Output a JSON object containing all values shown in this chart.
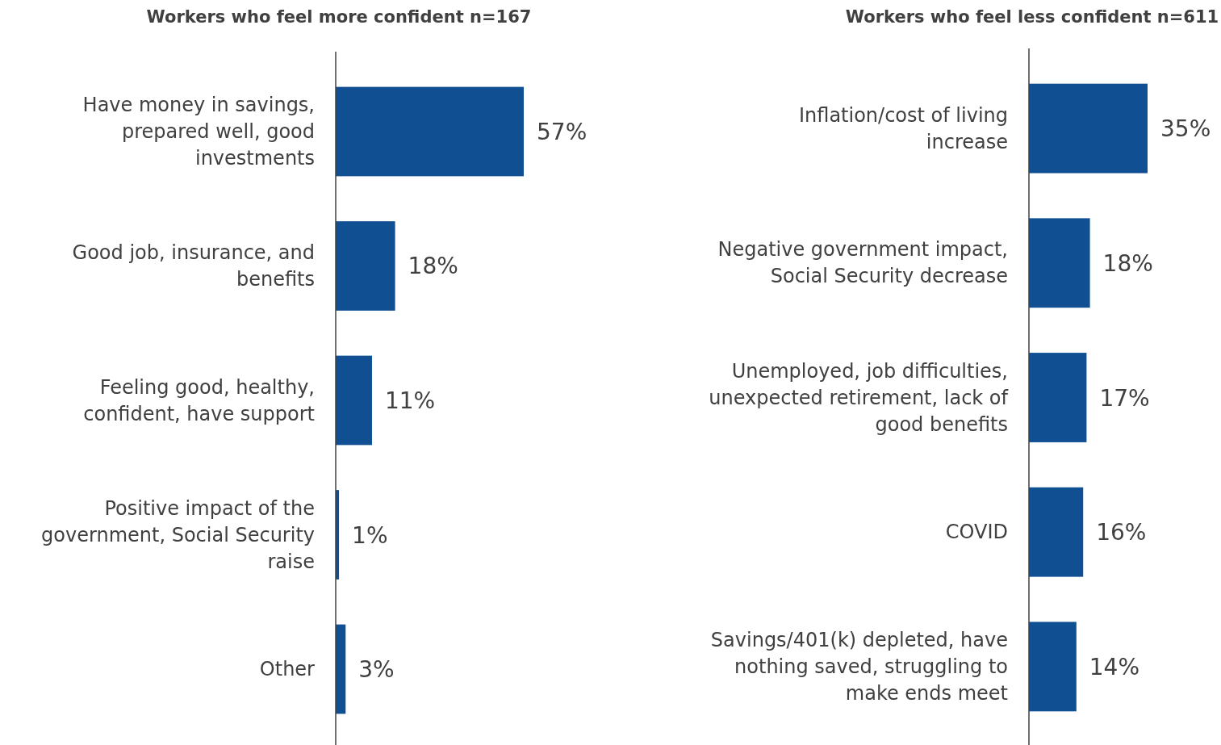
{
  "chart_data": [
    {
      "type": "bar",
      "orientation": "horizontal",
      "title": "Workers who feel more confident n=167",
      "categories": [
        "Have money in savings, prepared well, good investments",
        "Good job, insurance, and benefits",
        "Feeling good, healthy, confident, have support",
        "Positive impact of the government, Social Security raise",
        "Other"
      ],
      "values": [
        57,
        18,
        11,
        1,
        3
      ],
      "value_labels": [
        "57%",
        "18%",
        "11%",
        "1%",
        "3%"
      ],
      "color": "#114f93"
    },
    {
      "type": "bar",
      "orientation": "horizontal",
      "title": "Workers who feel less confident n=611",
      "categories": [
        "Inflation/cost of living increase",
        "Negative government impact, Social Security decrease",
        "Unemployed, job difficulties, unexpected retirement, lack of good benefits",
        "COVID",
        "Savings/401(k) depleted, have nothing saved, struggling to make ends meet"
      ],
      "values": [
        35,
        18,
        17,
        16,
        14
      ],
      "value_labels": [
        "35%",
        "18%",
        "17%",
        "16%",
        "14%"
      ],
      "color": "#114f93"
    }
  ]
}
